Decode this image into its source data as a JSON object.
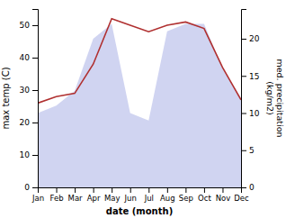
{
  "chart_data": {
    "type": "line",
    "x_label": "date (month)",
    "y_label": "max temp (C)",
    "y2_label": "med. precipitation\n(kg/m2)",
    "categories": [
      "Jan",
      "Feb",
      "Mar",
      "Apr",
      "May",
      "Jun",
      "Jul",
      "Aug",
      "Sep",
      "Oct",
      "Nov",
      "Dec"
    ],
    "series": [
      {
        "type": "area",
        "axis": "y2",
        "color": "#b0b8e8",
        "values": [
          10,
          11,
          13,
          20,
          22,
          10,
          9,
          21,
          22,
          22,
          16,
          12
        ]
      },
      {
        "type": "line",
        "color": "#b03030",
        "values": [
          26,
          28,
          29,
          38,
          52,
          50,
          48,
          50,
          51,
          49,
          37,
          27
        ]
      }
    ],
    "ylim": [
      0,
      55
    ],
    "yticks": [
      0,
      10,
      20,
      30,
      40,
      50
    ],
    "y2lim": [
      0,
      24
    ],
    "y2ticks": [
      0,
      5,
      10,
      15,
      20
    ],
    "grid": false
  }
}
